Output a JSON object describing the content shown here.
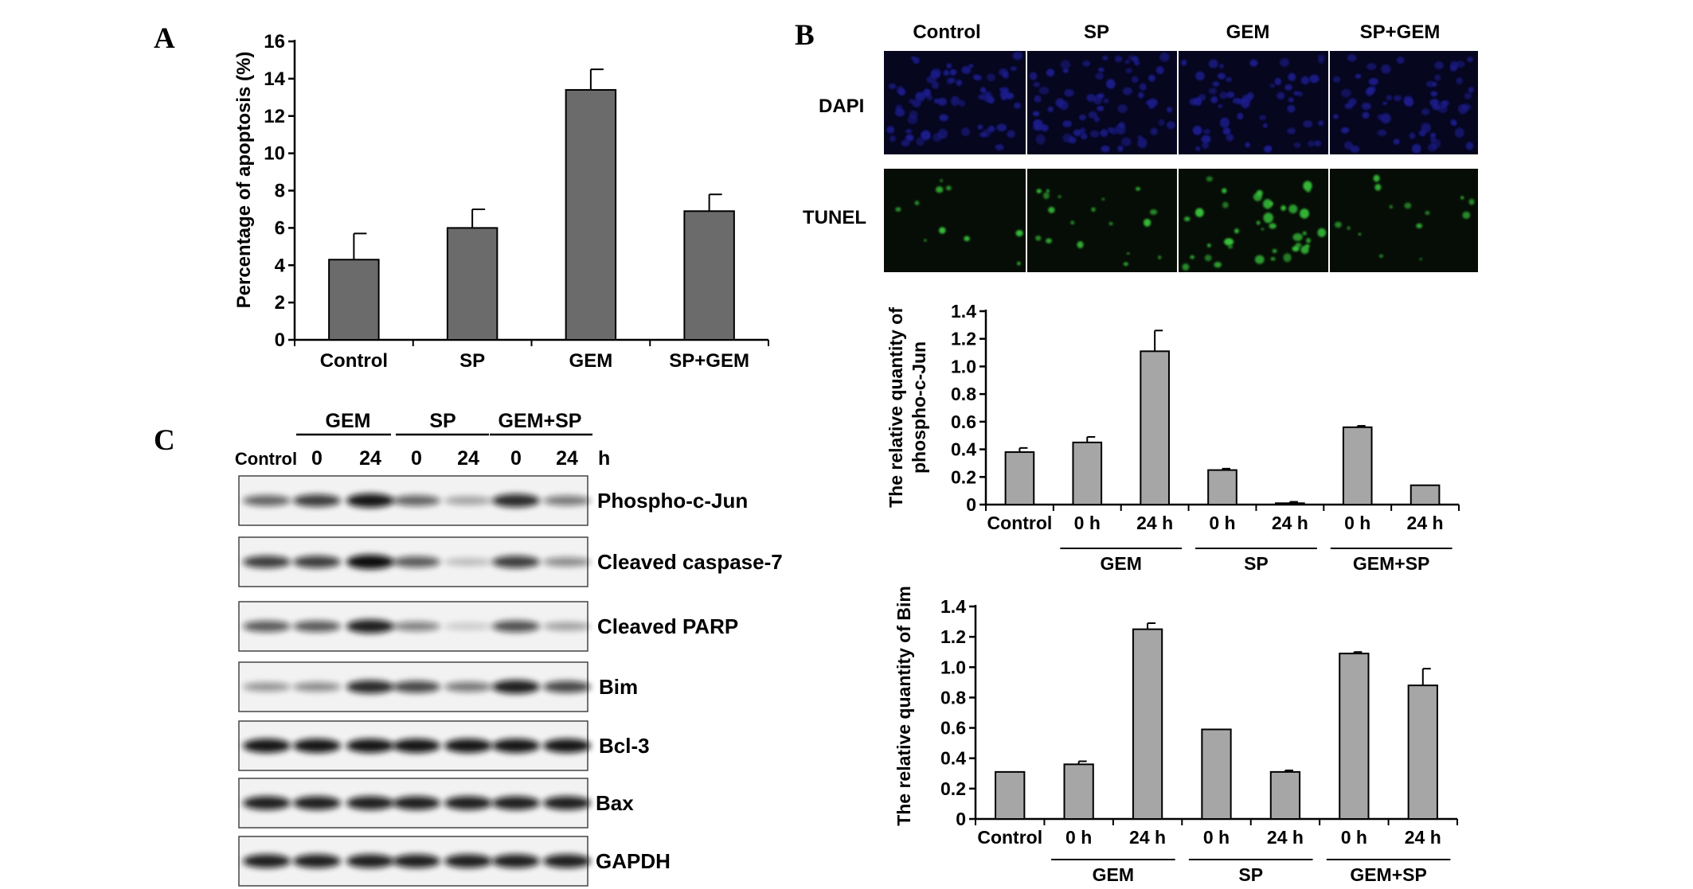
{
  "panel_labels": {
    "a": "A",
    "b": "B",
    "c": "C"
  },
  "colors": {
    "bar_dark": "#6b6b6b",
    "bar_light": "#a6a6a6",
    "dapi": "#1c1e8c",
    "tunel": "#39c43a"
  },
  "micrograph": {
    "columns": [
      "Control",
      "SP",
      "GEM",
      "SP+GEM"
    ],
    "rows": [
      "DAPI",
      "TUNEL"
    ]
  },
  "western": {
    "groups": [
      "GEM",
      "SP",
      "GEM+SP"
    ],
    "lanes": [
      "Control",
      "0",
      "24",
      "0",
      "24",
      "0",
      "24"
    ],
    "unit": "h",
    "proteins": [
      "Phospho-c-Jun",
      "Cleaved caspase-7",
      "Cleaved PARP",
      "Bim",
      "Bcl-3",
      "Bax",
      "GAPDH"
    ],
    "intensity": [
      [
        0.55,
        0.75,
        0.95,
        0.55,
        0.25,
        0.85,
        0.45
      ],
      [
        0.75,
        0.75,
        1.0,
        0.6,
        0.12,
        0.75,
        0.35
      ],
      [
        0.6,
        0.6,
        0.9,
        0.4,
        0.05,
        0.65,
        0.25
      ],
      [
        0.3,
        0.35,
        0.85,
        0.7,
        0.45,
        0.9,
        0.7
      ],
      [
        0.95,
        0.95,
        0.95,
        0.95,
        0.95,
        0.95,
        0.95
      ],
      [
        0.9,
        0.9,
        0.9,
        0.9,
        0.9,
        0.9,
        0.9
      ],
      [
        0.9,
        0.9,
        0.9,
        0.9,
        0.9,
        0.9,
        0.9
      ]
    ]
  },
  "chart_data": [
    {
      "id": "A",
      "type": "bar",
      "categories": [
        "Control",
        "SP",
        "GEM",
        "SP+GEM"
      ],
      "values": [
        4.3,
        6.0,
        13.4,
        6.9
      ],
      "errors": [
        1.4,
        1.0,
        1.1,
        0.9
      ],
      "ylabel": "Percentage of apoptosis (%)",
      "ylim": [
        0,
        16
      ],
      "yticks": [
        0,
        2,
        4,
        6,
        8,
        10,
        12,
        14,
        16
      ],
      "grid": false
    },
    {
      "id": "B-chart",
      "type": "bar",
      "categories": [
        "Control",
        "0 h",
        "24 h",
        "0 h",
        "24 h",
        "0 h",
        "24 h"
      ],
      "groups": [
        {
          "label": "GEM",
          "from": 1,
          "to": 2
        },
        {
          "label": "SP",
          "from": 3,
          "to": 4
        },
        {
          "label": "GEM+SP",
          "from": 5,
          "to": 6
        }
      ],
      "values": [
        0.38,
        0.45,
        1.11,
        0.25,
        0.01,
        0.56,
        0.14
      ],
      "errors": [
        0.03,
        0.04,
        0.15,
        0.01,
        0.01,
        0.01,
        0.0
      ],
      "ylabel": [
        "The relative quantity of",
        "phospho-c-Jun"
      ],
      "ylim": [
        0,
        1.4
      ],
      "yticks": [
        "0",
        "0.2",
        "0.4",
        "0.6",
        "0.8",
        "1.0",
        "1.2",
        "1.4"
      ],
      "grid": false
    },
    {
      "id": "C-chart",
      "type": "bar",
      "categories": [
        "Control",
        "0 h",
        "24 h",
        "0 h",
        "24 h",
        "0 h",
        "24 h"
      ],
      "groups": [
        {
          "label": "GEM",
          "from": 1,
          "to": 2
        },
        {
          "label": "SP",
          "from": 3,
          "to": 4
        },
        {
          "label": "GEM+SP",
          "from": 5,
          "to": 6
        }
      ],
      "values": [
        0.31,
        0.36,
        1.25,
        0.59,
        0.31,
        1.09,
        0.88
      ],
      "errors": [
        0.0,
        0.02,
        0.04,
        0.0,
        0.01,
        0.01,
        0.11
      ],
      "ylabel": "The relative quantity of Bim",
      "ylim": [
        0,
        1.4
      ],
      "yticks": [
        "0",
        "0.2",
        "0.4",
        "0.6",
        "0.8",
        "1.0",
        "1.2",
        "1.4"
      ],
      "grid": false
    }
  ]
}
